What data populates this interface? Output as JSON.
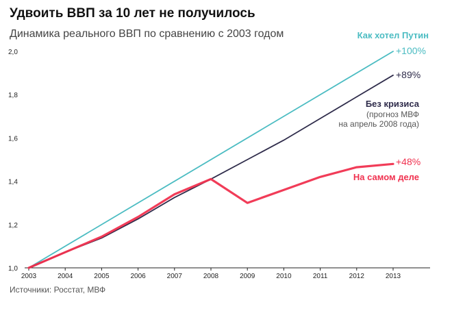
{
  "header": {
    "title": "Удвоить ВВП за 10 лет не получилось",
    "subtitle": "Динамика реального ВВП по сравнению с 2003 годом"
  },
  "footer": {
    "source": "Источники: Росстат, МВФ"
  },
  "chart_data": {
    "type": "line",
    "title": "Удвоить ВВП за 10 лет не получилось",
    "subtitle": "Динамика реального ВВП по сравнению с 2003 годом",
    "xlabel": "",
    "ylabel": "",
    "x": [
      2003,
      2004,
      2005,
      2006,
      2007,
      2008,
      2009,
      2010,
      2011,
      2012,
      2013
    ],
    "ylim": [
      1.0,
      2.0
    ],
    "yticks": [
      "1,0",
      "1,2",
      "1,4",
      "1,6",
      "1,8",
      "2,0"
    ],
    "xticks": [
      "2003",
      "2004",
      "2005",
      "2006",
      "2007",
      "2008",
      "2009",
      "2010",
      "2011",
      "2012",
      "2013"
    ],
    "grid": false,
    "series": [
      {
        "name": "Как хотел Путин",
        "color": "#4bbcc2",
        "end_label": "+100%",
        "x": [
          2003,
          2013
        ],
        "values": [
          1.0,
          2.0
        ]
      },
      {
        "name": "Без кризиса",
        "note": "(прогноз МВФ\nна апрель 2008 года)",
        "color": "#2f2c4b",
        "end_label": "+89%",
        "x": [
          2003,
          2004,
          2005,
          2006,
          2007,
          2008,
          2009,
          2010,
          2011,
          2012,
          2013
        ],
        "values": [
          1.0,
          1.072,
          1.138,
          1.226,
          1.325,
          1.41,
          1.5,
          1.59,
          1.69,
          1.79,
          1.89
        ]
      },
      {
        "name": "На самом деле",
        "color": "#f0314f",
        "end_label": "+48%",
        "x": [
          2003,
          2004,
          2005,
          2006,
          2007,
          2008,
          2009,
          2010,
          2011,
          2012,
          2013
        ],
        "values": [
          1.0,
          1.072,
          1.144,
          1.235,
          1.34,
          1.41,
          1.3,
          1.36,
          1.42,
          1.465,
          1.48
        ]
      }
    ]
  }
}
